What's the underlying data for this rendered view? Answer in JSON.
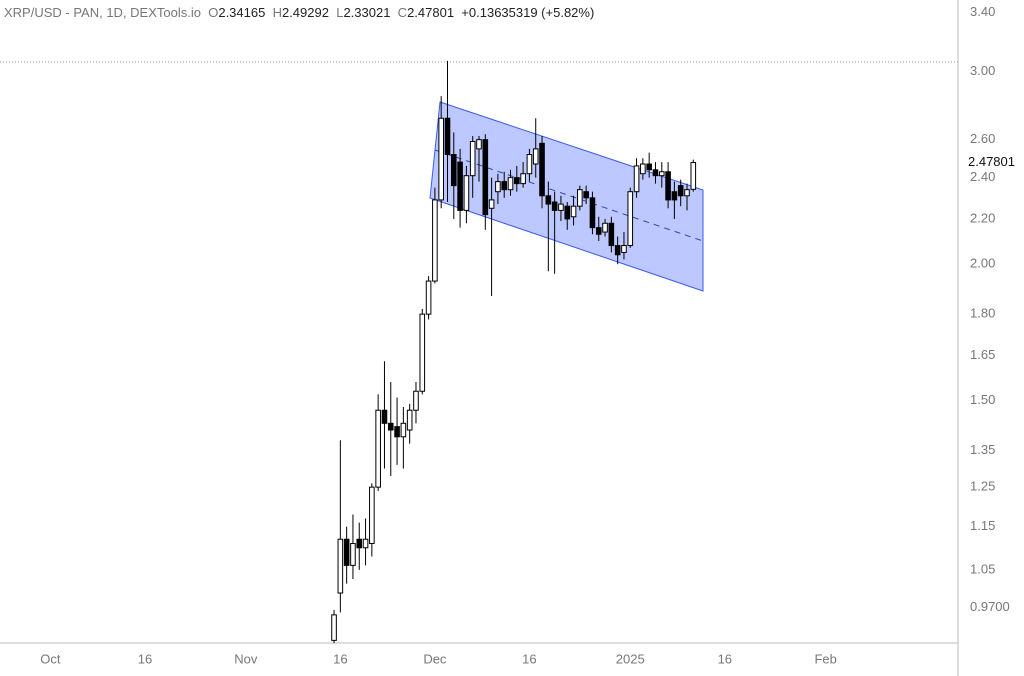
{
  "chart_data": {
    "type": "candlestick",
    "title": "XRP/USD - PAN, 1D, DEXTools.io",
    "legend_labels": [
      "O",
      "H",
      "L",
      "C"
    ],
    "change_label": "+0.13635319 (+5.82%)",
    "log_scale": true,
    "up_color": "#ffffff",
    "down_color": "#000000",
    "x": [
      "2024-11-15",
      "2024-11-16",
      "2024-11-17",
      "2024-11-18",
      "2024-11-19",
      "2024-11-20",
      "2024-11-21",
      "2024-11-22",
      "2024-11-23",
      "2024-11-24",
      "2024-11-25",
      "2024-11-26",
      "2024-11-27",
      "2024-11-28",
      "2024-11-29",
      "2024-11-30",
      "2024-12-01",
      "2024-12-02",
      "2024-12-03",
      "2024-12-04",
      "2024-12-05",
      "2024-12-06",
      "2024-12-07",
      "2024-12-08",
      "2024-12-09",
      "2024-12-10",
      "2024-12-11",
      "2024-12-12",
      "2024-12-13",
      "2024-12-14",
      "2024-12-15",
      "2024-12-16",
      "2024-12-17",
      "2024-12-18",
      "2024-12-19",
      "2024-12-20",
      "2024-12-21",
      "2024-12-22",
      "2024-12-23",
      "2024-12-24",
      "2024-12-25",
      "2024-12-26",
      "2024-12-27",
      "2024-12-28",
      "2024-12-29",
      "2024-12-30",
      "2024-12-31",
      "2025-01-01",
      "2025-01-02",
      "2025-01-03",
      "2025-01-04",
      "2025-01-05",
      "2025-01-06",
      "2025-01-07",
      "2025-01-08",
      "2025-01-09",
      "2025-01-10",
      "2025-01-11"
    ],
    "open": [
      0.905,
      1.0,
      1.12,
      1.06,
      1.12,
      1.1,
      1.11,
      1.25,
      1.47,
      1.43,
      1.42,
      1.39,
      1.41,
      1.47,
      1.53,
      1.8,
      1.93,
      2.29,
      2.72,
      2.52,
      2.48,
      2.24,
      2.41,
      2.55,
      2.6,
      2.25,
      2.33,
      2.38,
      2.34,
      2.4,
      2.37,
      2.42,
      2.47,
      2.58,
      2.31,
      2.28,
      2.24,
      2.26,
      2.21,
      2.26,
      2.33,
      2.3,
      2.16,
      2.14,
      2.18,
      2.08,
      2.05,
      2.08,
      2.33,
      2.42,
      2.47,
      2.44,
      2.41,
      2.43,
      2.33,
      2.36,
      2.31,
      2.34165
    ],
    "high": [
      0.965,
      1.38,
      1.15,
      1.18,
      1.16,
      1.17,
      1.26,
      1.52,
      1.63,
      1.56,
      1.51,
      1.48,
      1.49,
      1.56,
      1.82,
      1.95,
      2.35,
      2.85,
      3.07,
      2.64,
      2.55,
      2.46,
      2.62,
      2.62,
      2.63,
      2.4,
      2.42,
      2.43,
      2.44,
      2.46,
      2.48,
      2.55,
      2.72,
      2.62,
      2.38,
      2.33,
      2.31,
      2.28,
      2.31,
      2.36,
      2.36,
      2.33,
      2.21,
      2.2,
      2.21,
      2.12,
      2.14,
      2.35,
      2.5,
      2.5,
      2.53,
      2.48,
      2.48,
      2.48,
      2.38,
      2.39,
      2.37,
      2.49292
    ],
    "low": [
      0.9,
      0.96,
      1.02,
      1.03,
      1.05,
      1.06,
      1.08,
      1.24,
      1.3,
      1.28,
      1.31,
      1.3,
      1.37,
      1.43,
      1.52,
      1.78,
      1.92,
      2.25,
      2.28,
      2.2,
      2.16,
      2.18,
      2.3,
      2.38,
      2.15,
      1.87,
      2.27,
      2.3,
      2.31,
      2.33,
      2.35,
      2.38,
      2.4,
      2.25,
      1.97,
      1.96,
      2.19,
      2.15,
      2.17,
      2.24,
      2.27,
      2.13,
      2.1,
      2.12,
      2.05,
      2.0,
      2.02,
      2.07,
      2.3,
      2.39,
      2.4,
      2.37,
      2.35,
      2.25,
      2.2,
      2.26,
      2.24,
      2.33021
    ],
    "close": [
      0.955,
      1.12,
      1.06,
      1.11,
      1.1,
      1.12,
      1.25,
      1.47,
      1.43,
      1.41,
      1.39,
      1.43,
      1.47,
      1.53,
      1.8,
      1.93,
      2.29,
      2.72,
      2.52,
      2.36,
      2.24,
      2.41,
      2.59,
      2.6,
      2.22,
      2.29,
      2.38,
      2.34,
      2.4,
      2.37,
      2.42,
      2.52,
      2.55,
      2.31,
      2.27,
      2.24,
      2.27,
      2.2,
      2.26,
      2.34,
      2.3,
      2.16,
      2.13,
      2.18,
      2.08,
      2.04,
      2.08,
      2.33,
      2.46,
      2.47,
      2.44,
      2.41,
      2.43,
      2.29,
      2.29,
      2.31,
      2.34,
      2.47801
    ],
    "xlim": [
      "2024-09-23",
      "2025-02-22"
    ],
    "xticks": [
      {
        "value": "2024-10-01",
        "label": "Oct"
      },
      {
        "value": "2024-10-16",
        "label": "16"
      },
      {
        "value": "2024-11-01",
        "label": "Nov"
      },
      {
        "value": "2024-11-16",
        "label": "16"
      },
      {
        "value": "2024-12-01",
        "label": "Dec"
      },
      {
        "value": "2024-12-16",
        "label": "16"
      },
      {
        "value": "2025-01-01",
        "label": "2025"
      },
      {
        "value": "2025-01-16",
        "label": "16"
      },
      {
        "value": "2025-02-01",
        "label": "Feb"
      }
    ],
    "ylim": [
      0.9,
      3.49
    ],
    "yticks": [
      {
        "value": 0.97,
        "label": "0.9700"
      },
      1.05,
      1.15,
      1.25,
      1.35,
      {
        "value": 1.5,
        "label": "1.50"
      },
      1.65,
      {
        "value": 1.8,
        "label": "1.80"
      },
      {
        "value": 2,
        "label": "2.00"
      },
      {
        "value": 2.2,
        "label": "2.20"
      },
      {
        "value": 2.4,
        "label": "2.40"
      },
      {
        "value": 2.6,
        "label": "2.60"
      },
      {
        "value": 3,
        "label": "3.00"
      },
      {
        "value": 3.4,
        "label": "3.40"
      }
    ]
  }
}
